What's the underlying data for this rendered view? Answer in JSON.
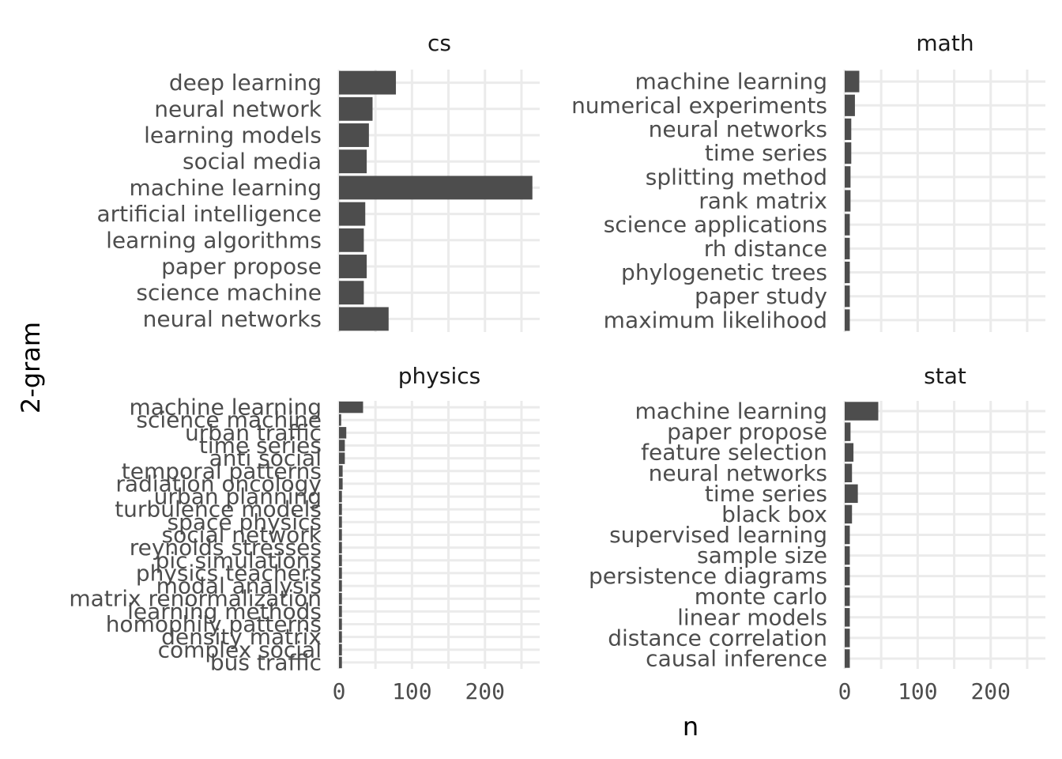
{
  "chart_data": {
    "type": "bar",
    "orientation": "horizontal",
    "facet_layout": "2x2",
    "xlabel": "n",
    "ylabel": "2-gram",
    "xlim": [
      0,
      275
    ],
    "x_ticks": [
      "0",
      "100",
      "200"
    ],
    "grid": true,
    "bar_color": "#4d4d4d",
    "panels": [
      {
        "name": "cs",
        "categories": [
          "deep learning",
          "neural network",
          "learning models",
          "social media",
          "machine learning",
          "artificial intelligence",
          "learning algorithms",
          "paper propose",
          "science machine",
          "neural networks"
        ],
        "values": [
          78,
          46,
          41,
          38,
          265,
          36,
          34,
          38,
          34,
          68
        ]
      },
      {
        "name": "math",
        "categories": [
          "machine learning",
          "numerical experiments",
          "neural networks",
          "time series",
          "splitting method",
          "rank matrix",
          "science applications",
          "rh distance",
          "phylogenetic trees",
          "paper study",
          "maximum likelihood"
        ],
        "values": [
          20,
          14,
          9,
          9,
          8,
          8,
          7,
          7,
          7,
          7,
          7
        ]
      },
      {
        "name": "physics",
        "categories": [
          "machine learning",
          "science machine",
          "urban traffic",
          "time series",
          "anti social",
          "temporal patterns",
          "radiation oncology",
          "urban planning",
          "turbulence models",
          "space physics",
          "social network",
          "reynolds stresses",
          "pic simulations",
          "physics teachers",
          "modal analysis",
          "matrix renormalization",
          "learning methods",
          "homophily patterns",
          "density matrix",
          "complex social",
          "bus traffic"
        ],
        "values": [
          33,
          3,
          10,
          8,
          8,
          5,
          5,
          4,
          4,
          4,
          4,
          4,
          4,
          4,
          4,
          4,
          4,
          4,
          4,
          4,
          4
        ]
      },
      {
        "name": "stat",
        "categories": [
          "machine learning",
          "paper propose",
          "feature selection",
          "neural networks",
          "time series",
          "black box",
          "supervised learning",
          "sample size",
          "persistence diagrams",
          "monte carlo",
          "linear models",
          "distance correlation",
          "causal inference"
        ],
        "values": [
          46,
          8,
          12,
          10,
          18,
          10,
          7,
          7,
          7,
          7,
          7,
          7,
          7
        ]
      }
    ]
  }
}
